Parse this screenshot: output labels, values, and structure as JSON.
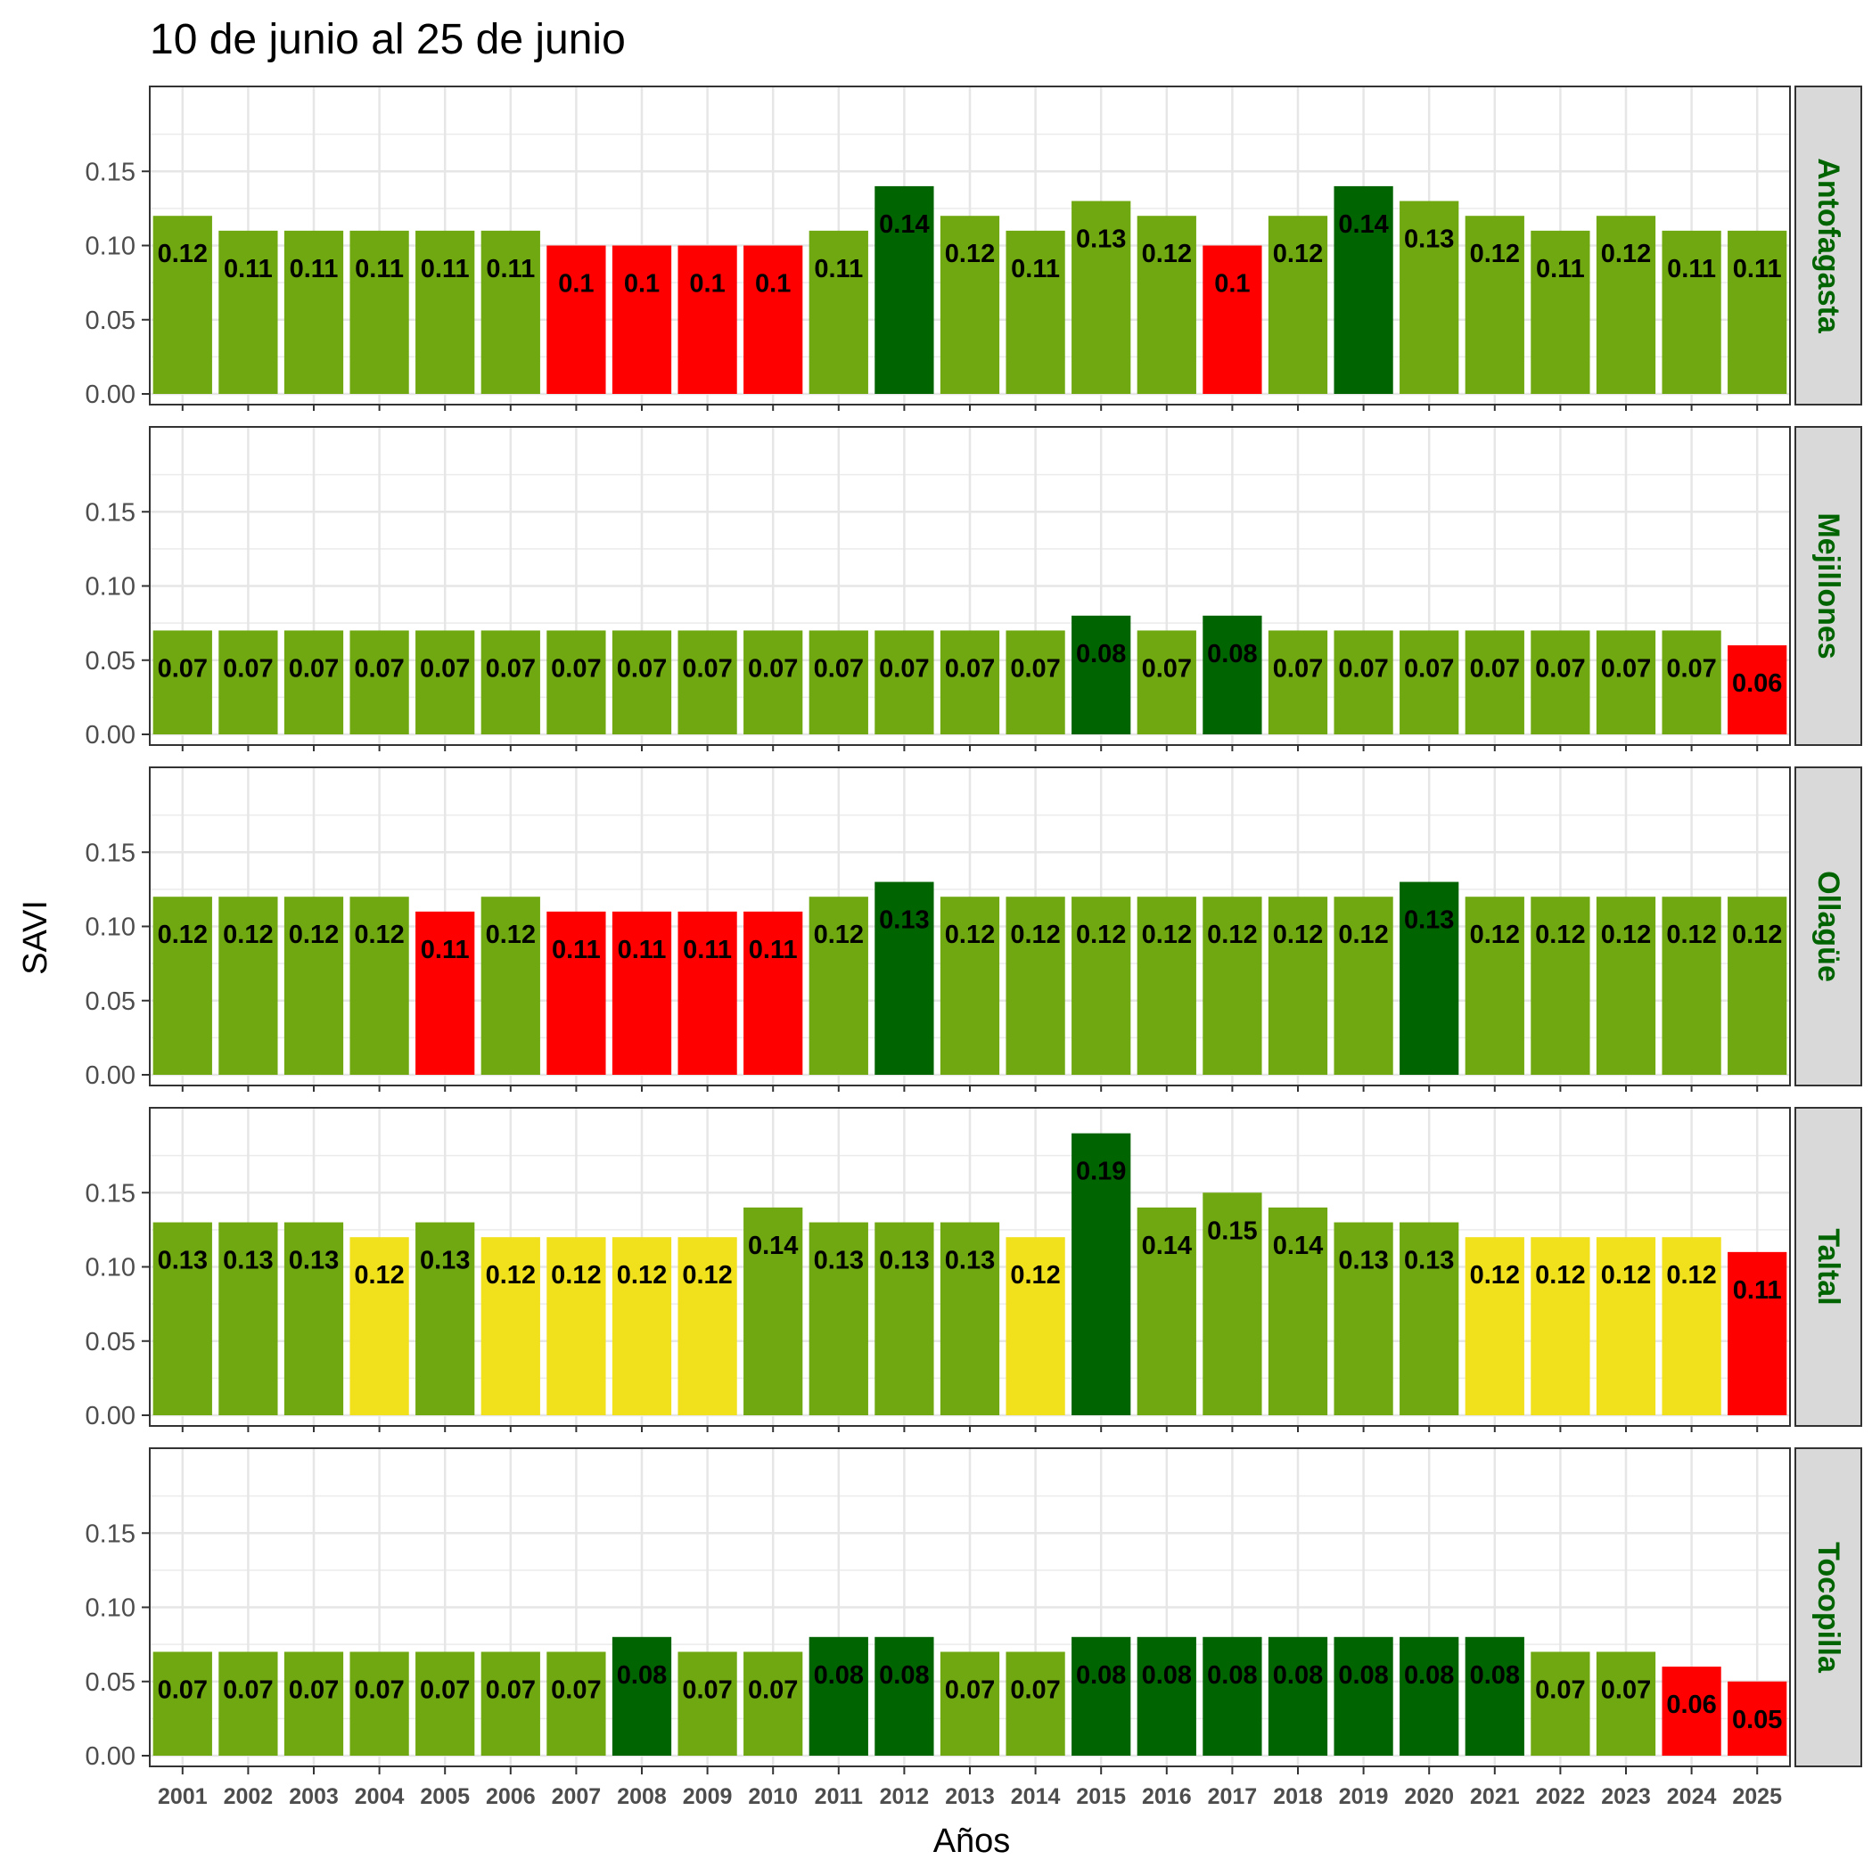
{
  "chart_data": {
    "type": "bar",
    "title": "10 de junio al 25 de junio",
    "xlabel": "Años",
    "ylabel": "SAVI",
    "ylim": [
      0,
      0.2
    ],
    "yticks": [
      "0.00",
      "0.05",
      "0.10",
      "0.15"
    ],
    "ytick_values": [
      0,
      0.05,
      0.1,
      0.15
    ],
    "grid": true,
    "facet_label_color": "#006400",
    "categories": [
      "2001",
      "2002",
      "2003",
      "2004",
      "2005",
      "2006",
      "2007",
      "2008",
      "2009",
      "2010",
      "2011",
      "2012",
      "2013",
      "2014",
      "2015",
      "2016",
      "2017",
      "2018",
      "2019",
      "2020",
      "2021",
      "2022",
      "2023",
      "2024",
      "2025"
    ],
    "colors": {
      "high": "#006400",
      "normal": "#6fa810",
      "low": "#f1e01c",
      "very_low": "#ff0000"
    },
    "panels": [
      {
        "name": "Antofagasta",
        "values": [
          0.12,
          0.11,
          0.11,
          0.11,
          0.11,
          0.11,
          0.1,
          0.1,
          0.1,
          0.1,
          0.11,
          0.14,
          0.12,
          0.11,
          0.13,
          0.12,
          0.1,
          0.12,
          0.14,
          0.13,
          0.12,
          0.11,
          0.12,
          0.11,
          0.11
        ],
        "labels": [
          "0.12",
          "0.11",
          "0.11",
          "0.11",
          "0.11",
          "0.11",
          "0.1",
          "0.1",
          "0.1",
          "0.1",
          "0.11",
          "0.14",
          "0.12",
          "0.11",
          "0.13",
          "0.12",
          "0.1",
          "0.12",
          "0.14",
          "0.13",
          "0.12",
          "0.11",
          "0.12",
          "0.11",
          "0.11"
        ],
        "classes": [
          "normal",
          "normal",
          "normal",
          "normal",
          "normal",
          "normal",
          "very_low",
          "very_low",
          "very_low",
          "very_low",
          "normal",
          "high",
          "normal",
          "normal",
          "normal",
          "normal",
          "very_low",
          "normal",
          "high",
          "normal",
          "normal",
          "normal",
          "normal",
          "normal",
          "normal"
        ]
      },
      {
        "name": "Mejillones",
        "values": [
          0.07,
          0.07,
          0.07,
          0.07,
          0.07,
          0.07,
          0.07,
          0.07,
          0.07,
          0.07,
          0.07,
          0.07,
          0.07,
          0.07,
          0.08,
          0.07,
          0.08,
          0.07,
          0.07,
          0.07,
          0.07,
          0.07,
          0.07,
          0.07,
          0.06
        ],
        "labels": [
          "0.07",
          "0.07",
          "0.07",
          "0.07",
          "0.07",
          "0.07",
          "0.07",
          "0.07",
          "0.07",
          "0.07",
          "0.07",
          "0.07",
          "0.07",
          "0.07",
          "0.08",
          "0.07",
          "0.08",
          "0.07",
          "0.07",
          "0.07",
          "0.07",
          "0.07",
          "0.07",
          "0.07",
          "0.06"
        ],
        "classes": [
          "normal",
          "normal",
          "normal",
          "normal",
          "normal",
          "normal",
          "normal",
          "normal",
          "normal",
          "normal",
          "normal",
          "normal",
          "normal",
          "normal",
          "high",
          "normal",
          "high",
          "normal",
          "normal",
          "normal",
          "normal",
          "normal",
          "normal",
          "normal",
          "very_low"
        ]
      },
      {
        "name": "Ollagüe",
        "values": [
          0.12,
          0.12,
          0.12,
          0.12,
          0.11,
          0.12,
          0.11,
          0.11,
          0.11,
          0.11,
          0.12,
          0.13,
          0.12,
          0.12,
          0.12,
          0.12,
          0.12,
          0.12,
          0.12,
          0.13,
          0.12,
          0.12,
          0.12,
          0.12,
          0.12
        ],
        "labels": [
          "0.12",
          "0.12",
          "0.12",
          "0.12",
          "0.11",
          "0.12",
          "0.11",
          "0.11",
          "0.11",
          "0.11",
          "0.12",
          "0.13",
          "0.12",
          "0.12",
          "0.12",
          "0.12",
          "0.12",
          "0.12",
          "0.12",
          "0.13",
          "0.12",
          "0.12",
          "0.12",
          "0.12",
          "0.12"
        ],
        "classes": [
          "normal",
          "normal",
          "normal",
          "normal",
          "very_low",
          "normal",
          "very_low",
          "very_low",
          "very_low",
          "very_low",
          "normal",
          "high",
          "normal",
          "normal",
          "normal",
          "normal",
          "normal",
          "normal",
          "normal",
          "high",
          "normal",
          "normal",
          "normal",
          "normal",
          "normal"
        ]
      },
      {
        "name": "Taltal",
        "values": [
          0.13,
          0.13,
          0.13,
          0.12,
          0.13,
          0.12,
          0.12,
          0.12,
          0.12,
          0.14,
          0.13,
          0.13,
          0.13,
          0.12,
          0.19,
          0.14,
          0.15,
          0.14,
          0.13,
          0.13,
          0.12,
          0.12,
          0.12,
          0.12,
          0.11
        ],
        "labels": [
          "0.13",
          "0.13",
          "0.13",
          "0.12",
          "0.13",
          "0.12",
          "0.12",
          "0.12",
          "0.12",
          "0.14",
          "0.13",
          "0.13",
          "0.13",
          "0.12",
          "0.19",
          "0.14",
          "0.15",
          "0.14",
          "0.13",
          "0.13",
          "0.12",
          "0.12",
          "0.12",
          "0.12",
          "0.11"
        ],
        "classes": [
          "normal",
          "normal",
          "normal",
          "low",
          "normal",
          "low",
          "low",
          "low",
          "low",
          "normal",
          "normal",
          "normal",
          "normal",
          "low",
          "high",
          "normal",
          "normal",
          "normal",
          "normal",
          "normal",
          "low",
          "low",
          "low",
          "low",
          "very_low"
        ]
      },
      {
        "name": "Tocopilla",
        "values": [
          0.07,
          0.07,
          0.07,
          0.07,
          0.07,
          0.07,
          0.07,
          0.08,
          0.07,
          0.07,
          0.08,
          0.08,
          0.07,
          0.07,
          0.08,
          0.08,
          0.08,
          0.08,
          0.08,
          0.08,
          0.08,
          0.07,
          0.07,
          0.06,
          0.05
        ],
        "labels": [
          "0.07",
          "0.07",
          "0.07",
          "0.07",
          "0.07",
          "0.07",
          "0.07",
          "0.08",
          "0.07",
          "0.07",
          "0.08",
          "0.08",
          "0.07",
          "0.07",
          "0.08",
          "0.08",
          "0.08",
          "0.08",
          "0.08",
          "0.08",
          "0.08",
          "0.07",
          "0.07",
          "0.06",
          "0.05"
        ],
        "classes": [
          "normal",
          "normal",
          "normal",
          "normal",
          "normal",
          "normal",
          "normal",
          "high",
          "normal",
          "normal",
          "high",
          "high",
          "normal",
          "normal",
          "high",
          "high",
          "high",
          "high",
          "high",
          "high",
          "high",
          "normal",
          "normal",
          "very_low",
          "very_low"
        ]
      }
    ]
  }
}
